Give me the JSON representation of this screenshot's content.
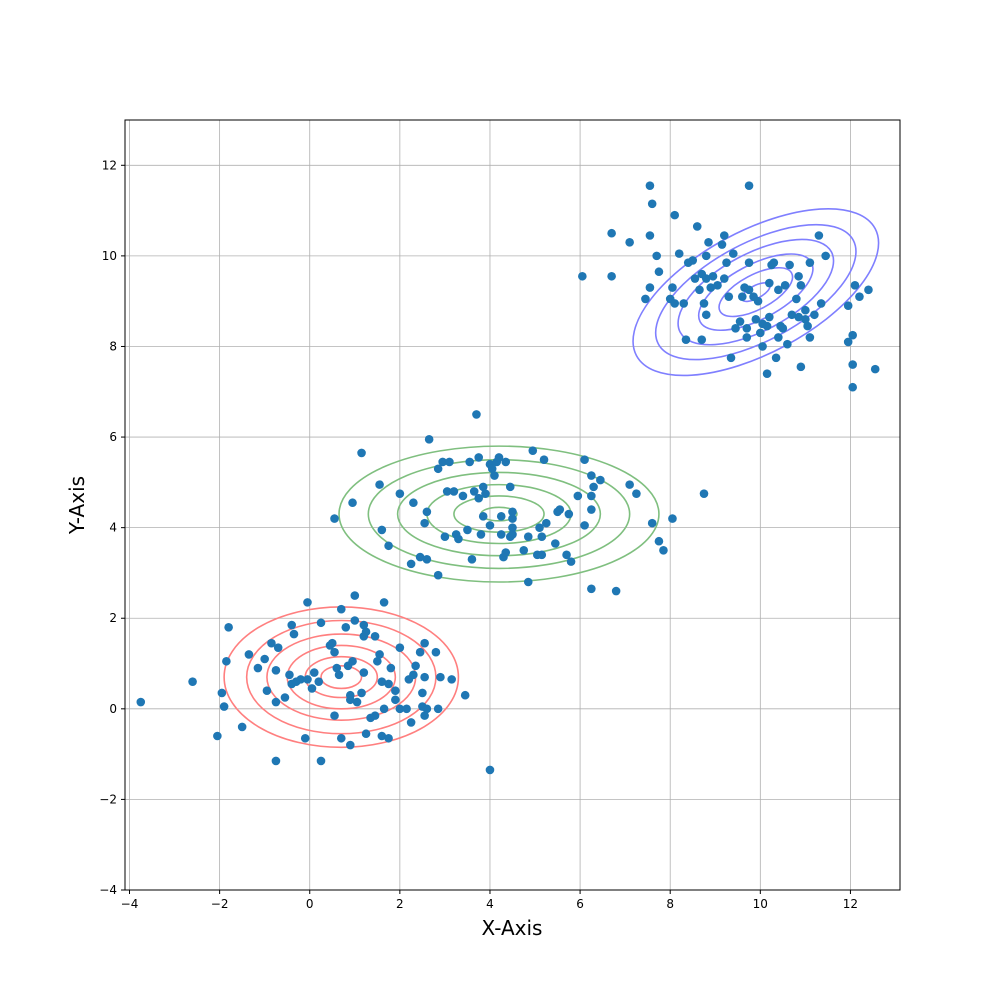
{
  "chart_data": {
    "type": "scatter",
    "title": "",
    "xlabel": "X-Axis",
    "ylabel": "Y-Axis",
    "xlim": [
      -4.1,
      13.1
    ],
    "ylim": [
      -4.0,
      13.0
    ],
    "xticks": [
      -4,
      -2,
      0,
      2,
      4,
      6,
      8,
      10,
      12
    ],
    "yticks": [
      -4,
      -2,
      0,
      2,
      4,
      6,
      8,
      10,
      12
    ],
    "grid": true,
    "point_color": "#1f77b4",
    "contours": [
      {
        "color": "#ff7f7f",
        "center": [
          0.7,
          0.7
        ],
        "radii": [
          [
            2.6,
            1.55
          ],
          [
            2.1,
            1.25
          ],
          [
            1.65,
            0.95
          ],
          [
            1.2,
            0.7
          ],
          [
            0.8,
            0.45
          ],
          [
            0.45,
            0.25
          ]
        ],
        "angle_deg": 0
      },
      {
        "color": "#7fbf7f",
        "center": [
          4.2,
          4.3
        ],
        "radii": [
          [
            3.55,
            1.5
          ],
          [
            2.9,
            1.2
          ],
          [
            2.25,
            0.92
          ],
          [
            1.6,
            0.65
          ],
          [
            1.0,
            0.4
          ],
          [
            0.4,
            0.15
          ]
        ],
        "angle_deg": 0
      },
      {
        "color": "#7f7fff",
        "center": [
          9.9,
          9.2
        ],
        "radii": [
          [
            3.0,
            1.35
          ],
          [
            2.45,
            1.08
          ],
          [
            1.9,
            0.85
          ],
          [
            1.4,
            0.6
          ],
          [
            0.9,
            0.38
          ],
          [
            0.35,
            0.14
          ]
        ],
        "angle_deg": -28
      }
    ],
    "points": [
      [
        -3.75,
        0.15
      ],
      [
        -2.6,
        0.6
      ],
      [
        -2.05,
        -0.6
      ],
      [
        -1.95,
        0.35
      ],
      [
        -1.9,
        0.05
      ],
      [
        -1.85,
        1.05
      ],
      [
        -1.8,
        1.8
      ],
      [
        -1.5,
        -0.4
      ],
      [
        -1.35,
        1.2
      ],
      [
        -1.15,
        0.9
      ],
      [
        -1.0,
        1.1
      ],
      [
        -0.95,
        0.4
      ],
      [
        -0.85,
        1.45
      ],
      [
        -0.75,
        0.15
      ],
      [
        -0.75,
        0.85
      ],
      [
        -0.7,
        1.35
      ],
      [
        -0.75,
        -1.15
      ],
      [
        -0.55,
        0.25
      ],
      [
        -0.45,
        0.75
      ],
      [
        -0.4,
        0.55
      ],
      [
        -0.4,
        1.85
      ],
      [
        -0.35,
        1.65
      ],
      [
        -0.3,
        0.6
      ],
      [
        -0.2,
        0.65
      ],
      [
        -0.1,
        -0.65
      ],
      [
        -0.05,
        2.35
      ],
      [
        -0.05,
        0.65
      ],
      [
        0.05,
        0.45
      ],
      [
        0.1,
        0.8
      ],
      [
        0.2,
        0.6
      ],
      [
        0.25,
        1.9
      ],
      [
        0.25,
        -1.15
      ],
      [
        0.45,
        1.4
      ],
      [
        0.5,
        1.45
      ],
      [
        0.55,
        1.25
      ],
      [
        0.55,
        -0.15
      ],
      [
        0.6,
        0.9
      ],
      [
        0.65,
        0.75
      ],
      [
        0.7,
        -0.65
      ],
      [
        0.7,
        2.2
      ],
      [
        0.8,
        1.8
      ],
      [
        0.85,
        0.95
      ],
      [
        0.9,
        0.2
      ],
      [
        0.9,
        0.3
      ],
      [
        0.9,
        -0.8
      ],
      [
        0.95,
        1.05
      ],
      [
        1.0,
        1.95
      ],
      [
        1.0,
        2.5
      ],
      [
        1.05,
        0.15
      ],
      [
        1.15,
        0.35
      ],
      [
        1.2,
        0.8
      ],
      [
        1.2,
        1.6
      ],
      [
        1.2,
        1.85
      ],
      [
        1.25,
        1.7
      ],
      [
        1.25,
        -0.55
      ],
      [
        1.35,
        -0.2
      ],
      [
        1.45,
        1.6
      ],
      [
        1.45,
        -0.15
      ],
      [
        1.5,
        1.05
      ],
      [
        1.55,
        1.2
      ],
      [
        1.6,
        0.6
      ],
      [
        1.6,
        -0.6
      ],
      [
        1.65,
        0.0
      ],
      [
        1.65,
        2.35
      ],
      [
        1.75,
        0.55
      ],
      [
        1.75,
        -0.65
      ],
      [
        1.8,
        0.9
      ],
      [
        1.9,
        0.2
      ],
      [
        1.9,
        0.4
      ],
      [
        2.0,
        1.35
      ],
      [
        2.0,
        0.0
      ],
      [
        2.15,
        0.0
      ],
      [
        2.2,
        0.65
      ],
      [
        2.25,
        -0.3
      ],
      [
        2.3,
        0.75
      ],
      [
        2.35,
        0.95
      ],
      [
        2.45,
        1.25
      ],
      [
        2.5,
        0.05
      ],
      [
        2.5,
        0.35
      ],
      [
        2.55,
        -0.15
      ],
      [
        2.55,
        0.7
      ],
      [
        2.6,
        0.0
      ],
      [
        2.8,
        1.25
      ],
      [
        2.85,
        0.0
      ],
      [
        2.9,
        0.7
      ],
      [
        3.15,
        0.65
      ],
      [
        3.45,
        0.3
      ],
      [
        2.55,
        1.45
      ],
      [
        4.0,
        -1.35
      ],
      [
        0.55,
        4.2
      ],
      [
        0.95,
        4.55
      ],
      [
        1.15,
        5.65
      ],
      [
        1.55,
        4.95
      ],
      [
        1.6,
        3.95
      ],
      [
        1.75,
        3.6
      ],
      [
        2.0,
        4.75
      ],
      [
        2.25,
        3.2
      ],
      [
        2.3,
        4.55
      ],
      [
        2.45,
        3.35
      ],
      [
        2.55,
        4.1
      ],
      [
        2.6,
        3.3
      ],
      [
        2.6,
        4.35
      ],
      [
        2.65,
        5.95
      ],
      [
        2.85,
        2.95
      ],
      [
        2.85,
        5.3
      ],
      [
        2.95,
        5.45
      ],
      [
        3.0,
        3.8
      ],
      [
        3.05,
        4.8
      ],
      [
        3.1,
        5.45
      ],
      [
        3.2,
        4.8
      ],
      [
        3.25,
        3.85
      ],
      [
        3.3,
        3.75
      ],
      [
        3.4,
        4.7
      ],
      [
        3.5,
        3.95
      ],
      [
        3.55,
        5.45
      ],
      [
        3.6,
        3.3
      ],
      [
        3.65,
        4.8
      ],
      [
        3.7,
        6.5
      ],
      [
        3.75,
        4.65
      ],
      [
        3.75,
        5.55
      ],
      [
        3.8,
        3.85
      ],
      [
        3.85,
        4.25
      ],
      [
        3.85,
        4.9
      ],
      [
        3.9,
        4.75
      ],
      [
        4.0,
        4.05
      ],
      [
        4.0,
        5.4
      ],
      [
        4.05,
        5.3
      ],
      [
        4.1,
        5.15
      ],
      [
        4.15,
        5.45
      ],
      [
        4.2,
        5.55
      ],
      [
        4.25,
        4.25
      ],
      [
        4.25,
        3.85
      ],
      [
        4.3,
        3.35
      ],
      [
        4.35,
        3.45
      ],
      [
        4.35,
        5.45
      ],
      [
        4.45,
        3.8
      ],
      [
        4.45,
        4.9
      ],
      [
        4.5,
        4.2
      ],
      [
        4.5,
        3.85
      ],
      [
        4.5,
        4.35
      ],
      [
        4.5,
        4.0
      ],
      [
        4.75,
        3.5
      ],
      [
        4.85,
        3.8
      ],
      [
        4.85,
        2.8
      ],
      [
        4.95,
        5.7
      ],
      [
        5.05,
        3.4
      ],
      [
        5.1,
        4.0
      ],
      [
        5.15,
        3.8
      ],
      [
        5.15,
        3.4
      ],
      [
        5.2,
        5.5
      ],
      [
        5.25,
        4.1
      ],
      [
        5.45,
        3.65
      ],
      [
        5.5,
        4.35
      ],
      [
        5.55,
        4.4
      ],
      [
        5.7,
        3.4
      ],
      [
        5.75,
        4.3
      ],
      [
        5.8,
        3.25
      ],
      [
        5.95,
        4.7
      ],
      [
        6.1,
        5.5
      ],
      [
        6.1,
        4.05
      ],
      [
        6.25,
        4.4
      ],
      [
        6.25,
        4.7
      ],
      [
        6.25,
        5.15
      ],
      [
        6.3,
        4.9
      ],
      [
        6.45,
        5.05
      ],
      [
        6.25,
        2.65
      ],
      [
        6.8,
        2.6
      ],
      [
        7.1,
        4.95
      ],
      [
        7.25,
        4.75
      ],
      [
        7.6,
        4.1
      ],
      [
        7.75,
        3.7
      ],
      [
        7.85,
        3.5
      ],
      [
        8.05,
        4.2
      ],
      [
        8.75,
        4.75
      ],
      [
        6.05,
        9.55
      ],
      [
        6.7,
        9.55
      ],
      [
        6.7,
        10.5
      ],
      [
        7.1,
        10.3
      ],
      [
        7.45,
        9.05
      ],
      [
        7.55,
        9.3
      ],
      [
        7.55,
        10.45
      ],
      [
        7.55,
        11.55
      ],
      [
        7.6,
        11.15
      ],
      [
        7.7,
        10.0
      ],
      [
        7.75,
        9.65
      ],
      [
        8.0,
        9.05
      ],
      [
        8.05,
        9.3
      ],
      [
        8.1,
        8.95
      ],
      [
        8.1,
        10.9
      ],
      [
        8.2,
        10.05
      ],
      [
        8.3,
        8.95
      ],
      [
        8.35,
        8.15
      ],
      [
        8.4,
        9.85
      ],
      [
        8.5,
        9.9
      ],
      [
        8.55,
        9.5
      ],
      [
        8.6,
        10.65
      ],
      [
        8.65,
        9.25
      ],
      [
        8.7,
        9.6
      ],
      [
        8.7,
        8.15
      ],
      [
        8.75,
        8.95
      ],
      [
        8.8,
        10.0
      ],
      [
        8.8,
        9.5
      ],
      [
        8.8,
        8.7
      ],
      [
        8.85,
        10.3
      ],
      [
        8.9,
        9.3
      ],
      [
        8.95,
        9.55
      ],
      [
        9.05,
        9.35
      ],
      [
        9.15,
        10.25
      ],
      [
        9.2,
        9.5
      ],
      [
        9.2,
        10.45
      ],
      [
        9.25,
        9.85
      ],
      [
        9.3,
        9.1
      ],
      [
        9.35,
        7.75
      ],
      [
        9.4,
        10.05
      ],
      [
        9.45,
        8.4
      ],
      [
        9.55,
        8.55
      ],
      [
        9.6,
        9.1
      ],
      [
        9.65,
        9.3
      ],
      [
        9.7,
        8.4
      ],
      [
        9.7,
        8.2
      ],
      [
        9.75,
        9.25
      ],
      [
        9.75,
        9.85
      ],
      [
        9.75,
        11.55
      ],
      [
        9.85,
        9.1
      ],
      [
        9.9,
        8.6
      ],
      [
        9.95,
        9.0
      ],
      [
        10.0,
        8.3
      ],
      [
        10.05,
        8.0
      ],
      [
        10.05,
        8.5
      ],
      [
        10.15,
        7.4
      ],
      [
        10.15,
        8.45
      ],
      [
        10.2,
        8.65
      ],
      [
        10.2,
        9.4
      ],
      [
        10.25,
        9.8
      ],
      [
        10.3,
        9.85
      ],
      [
        10.35,
        7.75
      ],
      [
        10.4,
        9.25
      ],
      [
        10.4,
        8.2
      ],
      [
        10.45,
        8.45
      ],
      [
        10.5,
        8.4
      ],
      [
        10.55,
        9.35
      ],
      [
        10.6,
        8.05
      ],
      [
        10.65,
        9.8
      ],
      [
        10.7,
        8.7
      ],
      [
        10.8,
        9.05
      ],
      [
        10.85,
        8.65
      ],
      [
        10.85,
        9.55
      ],
      [
        10.9,
        7.55
      ],
      [
        10.9,
        9.35
      ],
      [
        11.0,
        8.8
      ],
      [
        11.0,
        8.6
      ],
      [
        11.05,
        8.45
      ],
      [
        11.1,
        8.2
      ],
      [
        11.1,
        9.85
      ],
      [
        11.2,
        8.7
      ],
      [
        11.3,
        10.45
      ],
      [
        11.35,
        8.95
      ],
      [
        11.45,
        10.0
      ],
      [
        11.95,
        8.9
      ],
      [
        11.95,
        8.1
      ],
      [
        12.05,
        7.6
      ],
      [
        12.05,
        8.25
      ],
      [
        12.05,
        7.1
      ],
      [
        12.1,
        9.35
      ],
      [
        12.2,
        9.1
      ],
      [
        12.4,
        9.25
      ],
      [
        12.55,
        7.5
      ]
    ]
  }
}
